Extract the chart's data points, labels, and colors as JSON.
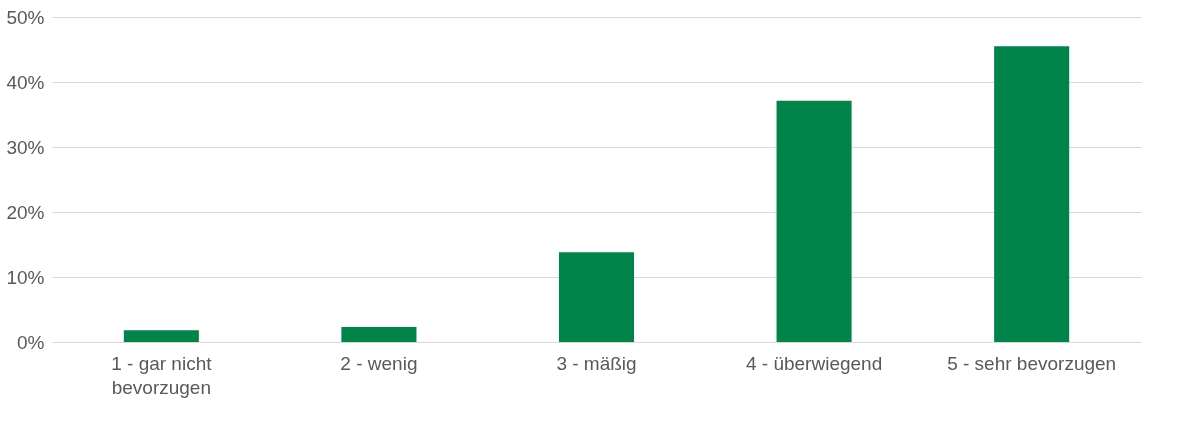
{
  "chart_data": {
    "type": "bar",
    "categories": [
      "1 - gar nicht bevorzugen",
      "2 - wenig",
      "3 - mäßig",
      "4 - überwiegend",
      "5 - sehr bevorzugen"
    ],
    "values": [
      1.8,
      2.3,
      13.8,
      37.1,
      45.5
    ],
    "color": "#00844a",
    "ylim": [
      0,
      50
    ],
    "yticks": [
      {
        "value": 0,
        "label": "0%"
      },
      {
        "value": 10,
        "label": "10%"
      },
      {
        "value": 20,
        "label": "20%"
      },
      {
        "value": 30,
        "label": "30%"
      },
      {
        "value": 40,
        "label": "40%"
      },
      {
        "value": 50,
        "label": "50%"
      }
    ],
    "grid": "y"
  }
}
